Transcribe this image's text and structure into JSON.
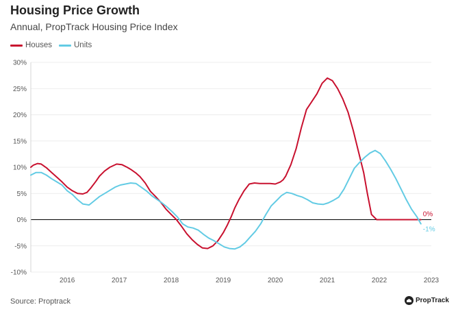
{
  "chart_data": {
    "type": "line",
    "title": "Housing Price Growth",
    "subtitle": "Annual, PropTrack Housing Price Index",
    "xlabel": "",
    "ylabel": "",
    "xlim": [
      2015.3,
      2023.0
    ],
    "ylim": [
      -10,
      30
    ],
    "x_ticks": [
      2016,
      2017,
      2018,
      2019,
      2020,
      2021,
      2022,
      2023
    ],
    "x_tick_labels": [
      "2016",
      "2017",
      "2018",
      "2019",
      "2020",
      "2021",
      "2022",
      "2023"
    ],
    "y_ticks": [
      -10,
      -5,
      0,
      5,
      10,
      15,
      20,
      25,
      30
    ],
    "y_tick_labels": [
      "-10%",
      "-5%",
      "0%",
      "5%",
      "10%",
      "15%",
      "20%",
      "25%",
      "30%"
    ],
    "grid": "horizontal",
    "legend": "top-left",
    "series": [
      {
        "name": "Houses",
        "color": "#c8102e",
        "end_label": "0%",
        "x": [
          2015.3,
          2015.35,
          2015.43,
          2015.5,
          2015.6,
          2015.7,
          2015.8,
          2015.9,
          2016.0,
          2016.1,
          2016.2,
          2016.3,
          2016.38,
          2016.45,
          2016.55,
          2016.62,
          2016.72,
          2016.82,
          2016.95,
          2017.05,
          2017.15,
          2017.22,
          2017.32,
          2017.4,
          2017.5,
          2017.6,
          2017.7,
          2017.8,
          2017.9,
          2018.0,
          2018.1,
          2018.2,
          2018.3,
          2018.4,
          2018.5,
          2018.6,
          2018.7,
          2018.8,
          2018.9,
          2019.0,
          2019.08,
          2019.15,
          2019.22,
          2019.3,
          2019.4,
          2019.5,
          2019.6,
          2019.7,
          2019.8,
          2019.9,
          2020.0,
          2020.1,
          2020.15,
          2020.2,
          2020.3,
          2020.4,
          2020.5,
          2020.6,
          2020.7,
          2020.8,
          2020.9,
          2021.0,
          2021.1,
          2021.2,
          2021.3,
          2021.4,
          2021.5,
          2021.6,
          2021.7,
          2021.77,
          2021.85,
          2021.95,
          2022.05,
          2022.15,
          2022.3,
          2022.45,
          2022.6,
          2022.7,
          2022.8
        ],
        "values": [
          10.0,
          10.4,
          10.7,
          10.6,
          9.9,
          9.0,
          8.1,
          7.2,
          6.2,
          5.5,
          5.0,
          4.9,
          5.2,
          6.0,
          7.3,
          8.3,
          9.3,
          10.0,
          10.6,
          10.5,
          10.0,
          9.6,
          8.9,
          8.2,
          7.0,
          5.4,
          4.4,
          3.3,
          2.0,
          1.0,
          0.0,
          -1.3,
          -2.7,
          -3.8,
          -4.7,
          -5.4,
          -5.5,
          -5.0,
          -4.0,
          -2.5,
          -1.0,
          0.5,
          2.2,
          3.8,
          5.5,
          6.8,
          7.0,
          6.9,
          6.9,
          6.9,
          6.8,
          7.2,
          7.6,
          8.3,
          10.5,
          13.5,
          17.5,
          21.0,
          22.5,
          24.0,
          26.0,
          27.0,
          26.5,
          25.0,
          23.0,
          20.5,
          17.0,
          13.0,
          9.0,
          5.0,
          1.0,
          0.0,
          0.0,
          0.0,
          0.0,
          0.0,
          0.0,
          0.0,
          0.0
        ]
      },
      {
        "name": "Units",
        "color": "#62cbe4",
        "end_label": "-1%",
        "x": [
          2015.3,
          2015.4,
          2015.5,
          2015.6,
          2015.7,
          2015.8,
          2015.9,
          2016.0,
          2016.1,
          2016.2,
          2016.3,
          2016.42,
          2016.52,
          2016.62,
          2016.72,
          2016.82,
          2016.92,
          2017.02,
          2017.12,
          2017.22,
          2017.32,
          2017.42,
          2017.52,
          2017.62,
          2017.72,
          2017.82,
          2017.92,
          2018.02,
          2018.12,
          2018.22,
          2018.32,
          2018.42,
          2018.52,
          2018.62,
          2018.72,
          2018.82,
          2018.92,
          2019.02,
          2019.12,
          2019.22,
          2019.32,
          2019.42,
          2019.52,
          2019.62,
          2019.72,
          2019.82,
          2019.92,
          2020.02,
          2020.12,
          2020.22,
          2020.32,
          2020.42,
          2020.52,
          2020.62,
          2020.72,
          2020.82,
          2020.92,
          2021.02,
          2021.12,
          2021.22,
          2021.32,
          2021.42,
          2021.52,
          2021.62,
          2021.72,
          2021.82,
          2021.92,
          2022.02,
          2022.12,
          2022.22,
          2022.32,
          2022.42,
          2022.52,
          2022.62,
          2022.72,
          2022.8
        ],
        "values": [
          8.5,
          9.0,
          9.0,
          8.5,
          7.8,
          7.2,
          6.6,
          5.5,
          4.8,
          3.8,
          3.0,
          2.8,
          3.6,
          4.4,
          5.0,
          5.6,
          6.2,
          6.6,
          6.8,
          7.0,
          6.9,
          6.2,
          5.5,
          4.6,
          3.9,
          3.2,
          2.4,
          1.5,
          0.5,
          -0.8,
          -1.4,
          -1.6,
          -2.0,
          -2.8,
          -3.5,
          -4.0,
          -4.6,
          -5.2,
          -5.5,
          -5.6,
          -5.2,
          -4.4,
          -3.3,
          -2.2,
          -0.8,
          1.0,
          2.6,
          3.6,
          4.6,
          5.2,
          5.0,
          4.6,
          4.3,
          3.8,
          3.2,
          3.0,
          2.9,
          3.2,
          3.7,
          4.3,
          5.8,
          7.8,
          9.8,
          10.9,
          11.9,
          12.7,
          13.2,
          12.6,
          11.2,
          9.6,
          7.8,
          5.8,
          3.8,
          2.0,
          0.6,
          -0.8
        ]
      }
    ]
  },
  "source": "Source: Proptrack",
  "brand": "PropTrack"
}
